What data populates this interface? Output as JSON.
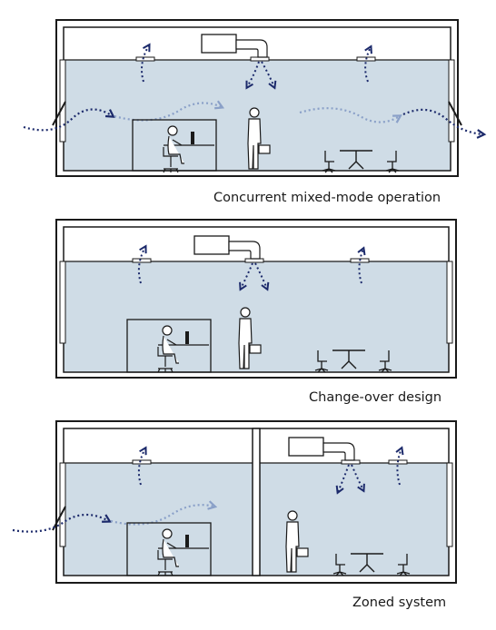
{
  "panels": [
    {
      "id": "concurrent",
      "caption": "Concurrent mixed-mode operation"
    },
    {
      "id": "changeover",
      "caption": "Change-over design"
    },
    {
      "id": "zoned",
      "caption": "Zoned system"
    }
  ],
  "colors": {
    "room_fill": "#cfdce6",
    "wall_stroke": "#1a1a1a",
    "airflow_dark": "#1c2a6b",
    "airflow_light": "#8aa0c8",
    "figure_fill": "#ffffff"
  }
}
